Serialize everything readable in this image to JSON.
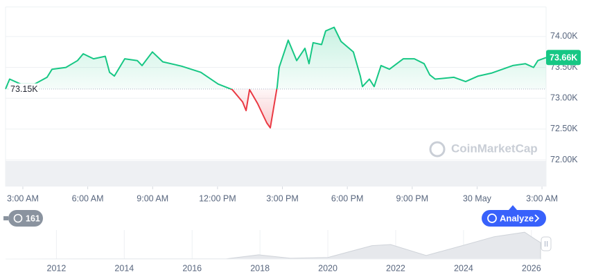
{
  "chart_data": {
    "type": "line",
    "series": [
      {
        "name": "Price",
        "color": "#16c784",
        "negative_color": "#ea3943",
        "x": [
          -0.8,
          -0.61,
          -0.1,
          0.54,
          1.12,
          1.35,
          1.99,
          2.53,
          2.79,
          3.27,
          3.81,
          4.01,
          4.23,
          4.71,
          5.29,
          5.51,
          5.99,
          6.47,
          7.34,
          8.23,
          9.03,
          9.68,
          10.16,
          10.32,
          10.48,
          10.86,
          11.28,
          11.44,
          11.76,
          11.85,
          12.27,
          12.66,
          13.04,
          13.23,
          13.42,
          13.81,
          14.0,
          14.39,
          14.71,
          15.28,
          15.6,
          15.7,
          16.02,
          16.24,
          16.56,
          16.95,
          17.59,
          18.1,
          18.55,
          18.81,
          19.06,
          19.93,
          20.47,
          21.05,
          21.69,
          22.65,
          23.23,
          23.61,
          23.81,
          24.19
        ],
        "values": [
          73150,
          73310,
          73230,
          73230,
          73340,
          73470,
          73500,
          73610,
          73720,
          73640,
          73680,
          73420,
          73360,
          73640,
          73610,
          73530,
          73750,
          73590,
          73520,
          73420,
          73230,
          73140,
          72940,
          72800,
          73140,
          72910,
          72600,
          72520,
          73190,
          73500,
          73940,
          73610,
          73810,
          73560,
          73900,
          73870,
          74090,
          74150,
          73920,
          73750,
          73360,
          73190,
          73310,
          73190,
          73530,
          73470,
          73640,
          73640,
          73560,
          73380,
          73310,
          73340,
          73270,
          73360,
          73410,
          73530,
          73560,
          73500,
          73610,
          73660
        ]
      }
    ],
    "baseline": 73150,
    "baseline_label": "73.15K",
    "current_label": "73.66K",
    "xlim": [
      -0.8,
      24.19
    ],
    "xticks": [
      {
        "value": 0,
        "label": "3:00 AM"
      },
      {
        "value": 3,
        "label": "6:00 AM"
      },
      {
        "value": 6,
        "label": "9:00 AM"
      },
      {
        "value": 9,
        "label": "12:00 PM"
      },
      {
        "value": 12,
        "label": "3:00 PM"
      },
      {
        "value": 15,
        "label": "6:00 PM"
      },
      {
        "value": 18,
        "label": "9:00 PM"
      },
      {
        "value": 21,
        "label": "30 May"
      },
      {
        "value": 24,
        "label": "3:00 AM"
      }
    ],
    "ylim": [
      71570,
      74480
    ],
    "yticks": [
      {
        "value": 72000,
        "label": "72.00K"
      },
      {
        "value": 72500,
        "label": "72.50K"
      },
      {
        "value": 73000,
        "label": "73.00K"
      },
      {
        "value": 73500,
        "label": "73.50K"
      },
      {
        "value": 74000,
        "label": "74.00K"
      }
    ],
    "grid": true,
    "watermark": "CoinMarketCap",
    "history_badge": "161",
    "analyze_button": "Analyze",
    "navigator": {
      "x": [
        2010.5,
        2013.9,
        2017.0,
        2017.96,
        2018.9,
        2020.0,
        2021.3,
        2021.85,
        2022.9,
        2024.2,
        2024.9,
        2025.8,
        2026.1,
        2026.27
      ],
      "values": [
        0,
        1000,
        1000,
        19000,
        3500,
        7000,
        60000,
        65000,
        16000,
        70000,
        100000,
        120000,
        90000,
        73660
      ],
      "xlim": [
        2010.5,
        2026.27
      ],
      "ylim": [
        0,
        130000
      ],
      "xticks": [
        2012,
        2014,
        2016,
        2018,
        2020,
        2022,
        2024,
        2026
      ]
    }
  }
}
